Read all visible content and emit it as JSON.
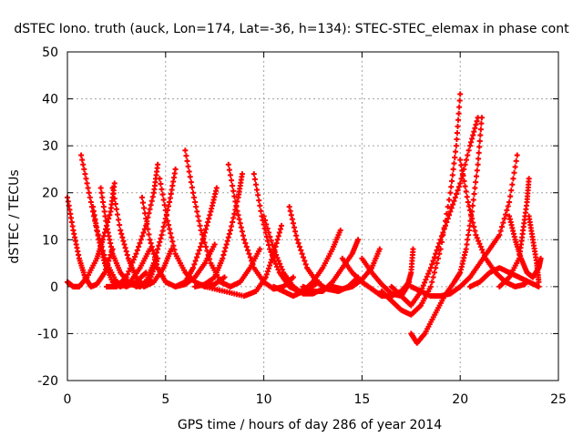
{
  "chart_data": {
    "type": "scatter",
    "title": "dSTEC Iono. truth (auck, Lon=174, Lat=-36, h=134): STEC-STEC_elemax in phase cont",
    "xlabel": "GPS time / hours of day 286 of year 2014",
    "ylabel": "dSTEC  / TECUs",
    "xlim": [
      0,
      25
    ],
    "ylim": [
      -20,
      50
    ],
    "xticks": [
      0,
      5,
      10,
      15,
      20,
      25
    ],
    "yticks": [
      -20,
      -10,
      0,
      10,
      20,
      30,
      40,
      50
    ],
    "grid": true,
    "legend": "none",
    "marker": "+",
    "color": "#ff0000",
    "series": [
      {
        "points": [
          [
            0.0,
            19
          ],
          [
            0.3,
            12
          ],
          [
            0.6,
            6
          ],
          [
            0.9,
            2
          ],
          [
            1.2,
            0
          ],
          [
            1.5,
            0.5
          ],
          [
            1.9,
            3
          ],
          [
            2.3,
            8
          ]
        ]
      },
      {
        "points": [
          [
            0.0,
            1
          ],
          [
            0.3,
            0
          ],
          [
            0.6,
            0
          ],
          [
            1.0,
            2
          ],
          [
            1.5,
            6
          ],
          [
            1.8,
            10
          ],
          [
            2.2,
            16
          ],
          [
            2.4,
            22
          ]
        ]
      },
      {
        "points": [
          [
            0.7,
            28
          ],
          [
            1.1,
            20
          ],
          [
            1.5,
            12
          ],
          [
            2.0,
            5
          ],
          [
            2.5,
            1
          ],
          [
            3.0,
            0
          ],
          [
            3.5,
            1
          ],
          [
            4.0,
            3
          ]
        ]
      },
      {
        "points": [
          [
            1.3,
            17
          ],
          [
            1.6,
            10
          ],
          [
            1.9,
            5
          ],
          [
            2.3,
            1
          ],
          [
            2.7,
            0
          ],
          [
            3.2,
            1
          ],
          [
            3.7,
            4
          ],
          [
            4.2,
            8
          ]
        ]
      },
      {
        "points": [
          [
            1.7,
            21
          ],
          [
            2.0,
            13
          ],
          [
            2.3,
            7
          ],
          [
            2.7,
            3
          ],
          [
            3.2,
            0.5
          ],
          [
            3.7,
            0
          ],
          [
            4.2,
            1.5
          ],
          [
            4.6,
            6
          ]
        ]
      },
      {
        "points": [
          [
            2.3,
            21
          ],
          [
            2.7,
            12
          ],
          [
            3.1,
            6
          ],
          [
            3.5,
            2
          ],
          [
            3.9,
            0
          ],
          [
            4.4,
            1
          ],
          [
            4.9,
            4
          ],
          [
            5.3,
            8
          ]
        ]
      },
      {
        "points": [
          [
            2.0,
            0
          ],
          [
            2.5,
            0
          ],
          [
            3.0,
            2
          ],
          [
            3.5,
            7
          ],
          [
            4.0,
            13
          ],
          [
            4.4,
            20
          ],
          [
            4.6,
            26
          ]
        ]
      },
      {
        "points": [
          [
            3.5,
            0
          ],
          [
            4.0,
            1
          ],
          [
            4.4,
            5
          ],
          [
            4.8,
            11
          ],
          [
            5.2,
            18
          ],
          [
            5.5,
            25
          ]
        ]
      },
      {
        "points": [
          [
            3.8,
            19
          ],
          [
            4.2,
            10
          ],
          [
            4.6,
            4
          ],
          [
            5.0,
            1
          ],
          [
            5.5,
            0
          ],
          [
            6.0,
            0.5
          ],
          [
            6.5,
            2
          ],
          [
            7.0,
            5
          ],
          [
            7.5,
            9
          ]
        ]
      },
      {
        "points": [
          [
            4.7,
            23
          ],
          [
            5.1,
            14
          ],
          [
            5.5,
            7
          ],
          [
            6.0,
            3
          ],
          [
            6.5,
            1
          ],
          [
            7.0,
            0
          ],
          [
            7.5,
            0.5
          ],
          [
            8.0,
            2
          ]
        ]
      },
      {
        "points": [
          [
            6.0,
            29
          ],
          [
            6.4,
            20
          ],
          [
            6.8,
            12
          ],
          [
            7.3,
            5
          ],
          [
            7.8,
            1
          ],
          [
            8.3,
            0
          ],
          [
            8.8,
            1
          ],
          [
            9.3,
            4
          ],
          [
            9.8,
            8
          ]
        ]
      },
      {
        "points": [
          [
            5.5,
            0
          ],
          [
            6.0,
            1
          ],
          [
            6.4,
            4
          ],
          [
            6.9,
            10
          ],
          [
            7.3,
            16
          ],
          [
            7.6,
            21
          ]
        ]
      },
      {
        "points": [
          [
            6.5,
            0
          ],
          [
            7.0,
            0.5
          ],
          [
            7.5,
            2
          ],
          [
            7.9,
            6
          ],
          [
            8.3,
            12
          ],
          [
            8.7,
            19
          ],
          [
            8.9,
            24
          ]
        ]
      },
      {
        "points": [
          [
            8.2,
            26
          ],
          [
            8.6,
            17
          ],
          [
            9.0,
            10
          ],
          [
            9.5,
            4
          ],
          [
            10.0,
            1
          ],
          [
            10.5,
            -0.5
          ],
          [
            11.0,
            0
          ],
          [
            11.5,
            2
          ]
        ]
      },
      {
        "points": [
          [
            9.5,
            24
          ],
          [
            9.9,
            15
          ],
          [
            10.3,
            8
          ],
          [
            10.8,
            3
          ],
          [
            11.3,
            0
          ],
          [
            11.8,
            -1
          ],
          [
            12.3,
            -0.5
          ],
          [
            12.8,
            1
          ]
        ]
      },
      {
        "points": [
          [
            7.0,
            0
          ],
          [
            8.0,
            -1
          ],
          [
            9.0,
            -2
          ],
          [
            9.6,
            -1
          ],
          [
            10.1,
            2
          ],
          [
            10.5,
            7
          ],
          [
            10.9,
            13
          ]
        ]
      },
      {
        "points": [
          [
            10.0,
            15
          ],
          [
            10.5,
            8
          ],
          [
            11.0,
            3
          ],
          [
            11.5,
            0
          ],
          [
            12.0,
            -1.5
          ],
          [
            12.5,
            -1.5
          ],
          [
            13.0,
            -0.5
          ]
        ]
      },
      {
        "points": [
          [
            11.3,
            17
          ],
          [
            11.7,
            10
          ],
          [
            12.2,
            4
          ],
          [
            12.7,
            1
          ],
          [
            13.2,
            -0.5
          ],
          [
            13.8,
            -1
          ],
          [
            14.3,
            0
          ],
          [
            14.8,
            2
          ]
        ]
      },
      {
        "points": [
          [
            10.5,
            0
          ],
          [
            11.0,
            -1
          ],
          [
            11.5,
            -2
          ],
          [
            12.0,
            -1
          ],
          [
            12.5,
            1
          ],
          [
            13.0,
            4
          ],
          [
            13.5,
            8
          ],
          [
            13.9,
            12
          ]
        ]
      },
      {
        "points": [
          [
            12.0,
            0
          ],
          [
            12.5,
            -1
          ],
          [
            13.0,
            -1
          ],
          [
            13.5,
            1
          ],
          [
            14.0,
            4
          ],
          [
            14.5,
            7
          ],
          [
            14.8,
            10
          ]
        ]
      },
      {
        "points": [
          [
            13.5,
            0
          ],
          [
            14.0,
            -0.5
          ],
          [
            14.5,
            0
          ],
          [
            15.0,
            1.5
          ],
          [
            15.5,
            4
          ],
          [
            15.9,
            8
          ]
        ]
      },
      {
        "points": [
          [
            14.0,
            6
          ],
          [
            14.5,
            3
          ],
          [
            15.0,
            1
          ],
          [
            15.5,
            -0.5
          ],
          [
            16.0,
            -2
          ],
          [
            16.5,
            -2
          ],
          [
            17.0,
            -1
          ],
          [
            17.4,
            1
          ]
        ]
      },
      {
        "points": [
          [
            15.0,
            6
          ],
          [
            15.5,
            3
          ],
          [
            16.0,
            0.5
          ],
          [
            16.5,
            -1.5
          ],
          [
            17.0,
            -2
          ],
          [
            17.3,
            0
          ],
          [
            17.5,
            3
          ],
          [
            17.6,
            8
          ]
        ]
      },
      {
        "points": [
          [
            16.0,
            -1
          ],
          [
            16.5,
            -3
          ],
          [
            17.0,
            -5
          ],
          [
            17.5,
            -6
          ],
          [
            18.0,
            -4
          ],
          [
            18.5,
            0
          ],
          [
            19.0,
            8
          ],
          [
            19.5,
            20
          ],
          [
            19.8,
            30
          ],
          [
            20.0,
            41
          ]
        ]
      },
      {
        "points": [
          [
            17.5,
            -10
          ],
          [
            17.8,
            -12
          ],
          [
            18.2,
            -10
          ],
          [
            18.7,
            -6
          ],
          [
            19.2,
            -2
          ],
          [
            19.7,
            1
          ],
          [
            20.0,
            3
          ],
          [
            20.3,
            8
          ],
          [
            20.6,
            16
          ],
          [
            20.9,
            26
          ],
          [
            21.1,
            36
          ]
        ]
      },
      {
        "points": [
          [
            16.5,
            0
          ],
          [
            17.0,
            -2
          ],
          [
            17.5,
            -4
          ],
          [
            18.0,
            -1
          ],
          [
            18.5,
            4
          ],
          [
            19.0,
            10
          ],
          [
            19.5,
            16
          ],
          [
            20.0,
            22
          ],
          [
            20.5,
            30
          ],
          [
            20.9,
            36
          ]
        ]
      },
      {
        "points": [
          [
            17.5,
            0
          ],
          [
            18.0,
            -1
          ],
          [
            18.5,
            -2
          ],
          [
            19.0,
            -2
          ],
          [
            19.5,
            -1.5
          ],
          [
            20.0,
            0
          ],
          [
            20.5,
            2
          ],
          [
            21.0,
            5
          ],
          [
            21.5,
            8
          ],
          [
            22.0,
            11
          ],
          [
            22.5,
            18
          ],
          [
            22.9,
            28
          ]
        ]
      },
      {
        "points": [
          [
            20.0,
            27
          ],
          [
            20.4,
            18
          ],
          [
            20.8,
            11
          ],
          [
            21.3,
            6
          ],
          [
            21.8,
            3
          ],
          [
            22.3,
            1
          ],
          [
            22.8,
            0
          ],
          [
            23.3,
            0.5
          ]
        ]
      },
      {
        "points": [
          [
            20.5,
            0
          ],
          [
            21.0,
            1
          ],
          [
            21.5,
            3
          ],
          [
            22.0,
            4
          ],
          [
            22.5,
            3
          ],
          [
            23.0,
            2
          ],
          [
            23.5,
            1
          ],
          [
            24.0,
            0
          ]
        ]
      },
      {
        "points": [
          [
            22.0,
            0
          ],
          [
            22.5,
            2
          ],
          [
            23.0,
            6
          ],
          [
            23.2,
            12
          ],
          [
            23.4,
            18
          ],
          [
            23.5,
            23
          ]
        ]
      },
      {
        "points": [
          [
            22.5,
            15
          ],
          [
            22.8,
            10
          ],
          [
            23.1,
            6
          ],
          [
            23.4,
            3
          ],
          [
            23.7,
            2
          ],
          [
            24.0,
            4
          ],
          [
            24.1,
            6
          ]
        ]
      },
      {
        "points": [
          [
            23.5,
            15
          ],
          [
            23.7,
            10
          ],
          [
            23.9,
            5
          ],
          [
            24.0,
            1
          ]
        ]
      }
    ]
  }
}
